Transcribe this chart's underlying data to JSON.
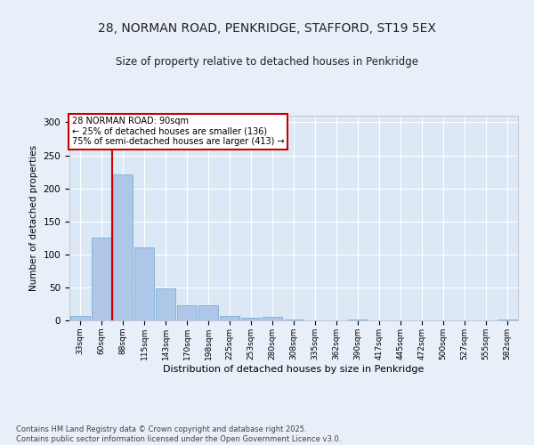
{
  "title_line1": "28, NORMAN ROAD, PENKRIDGE, STAFFORD, ST19 5EX",
  "title_line2": "Size of property relative to detached houses in Penkridge",
  "xlabel": "Distribution of detached houses by size in Penkridge",
  "ylabel": "Number of detached properties",
  "categories": [
    "33sqm",
    "60sqm",
    "88sqm",
    "115sqm",
    "143sqm",
    "170sqm",
    "198sqm",
    "225sqm",
    "253sqm",
    "280sqm",
    "308sqm",
    "335sqm",
    "362sqm",
    "390sqm",
    "417sqm",
    "445sqm",
    "472sqm",
    "500sqm",
    "527sqm",
    "555sqm",
    "582sqm"
  ],
  "values": [
    7,
    126,
    221,
    110,
    49,
    23,
    23,
    7,
    4,
    5,
    1,
    0,
    0,
    1,
    0,
    0,
    0,
    0,
    0,
    0,
    2
  ],
  "bar_color": "#aec6e8",
  "bar_edge_color": "#7aafd4",
  "background_color": "#e8eff8",
  "plot_bg_color": "#dce8f5",
  "annotation_text": "28 NORMAN ROAD: 90sqm\n← 25% of detached houses are smaller (136)\n75% of semi-detached houses are larger (413) →",
  "vline_color": "#cc0000",
  "annotation_box_color": "#cc0000",
  "ylim": [
    0,
    310
  ],
  "yticks": [
    0,
    50,
    100,
    150,
    200,
    250,
    300
  ],
  "footer_line1": "Contains HM Land Registry data © Crown copyright and database right 2025.",
  "footer_line2": "Contains public sector information licensed under the Open Government Licence v3.0."
}
